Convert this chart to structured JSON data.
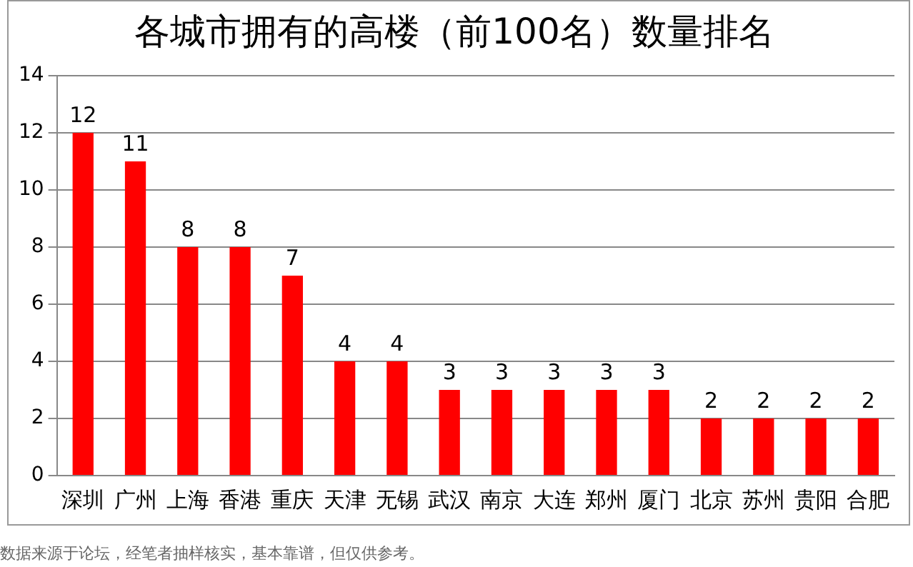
{
  "chart_data": {
    "type": "bar",
    "title": "各城市拥有的高楼（前100名）数量排名",
    "categories": [
      "深圳",
      "广州",
      "上海",
      "香港",
      "重庆",
      "天津",
      "无锡",
      "武汉",
      "南京",
      "大连",
      "郑州",
      "厦门",
      "北京",
      "苏州",
      "贵阳",
      "合肥"
    ],
    "values": [
      12,
      11,
      8,
      8,
      7,
      4,
      4,
      3,
      3,
      3,
      3,
      3,
      2,
      2,
      2,
      2
    ],
    "color": "#ff0000",
    "ylim": [
      0,
      14
    ],
    "yticks": [
      0,
      2,
      4,
      6,
      8,
      10,
      12,
      14
    ],
    "grid": "y",
    "data_labels": true,
    "legend": false,
    "annotations": [
      "数据来源于论坛，经笔者抽样核实，基本靠谱，但仅供参考。"
    ]
  }
}
